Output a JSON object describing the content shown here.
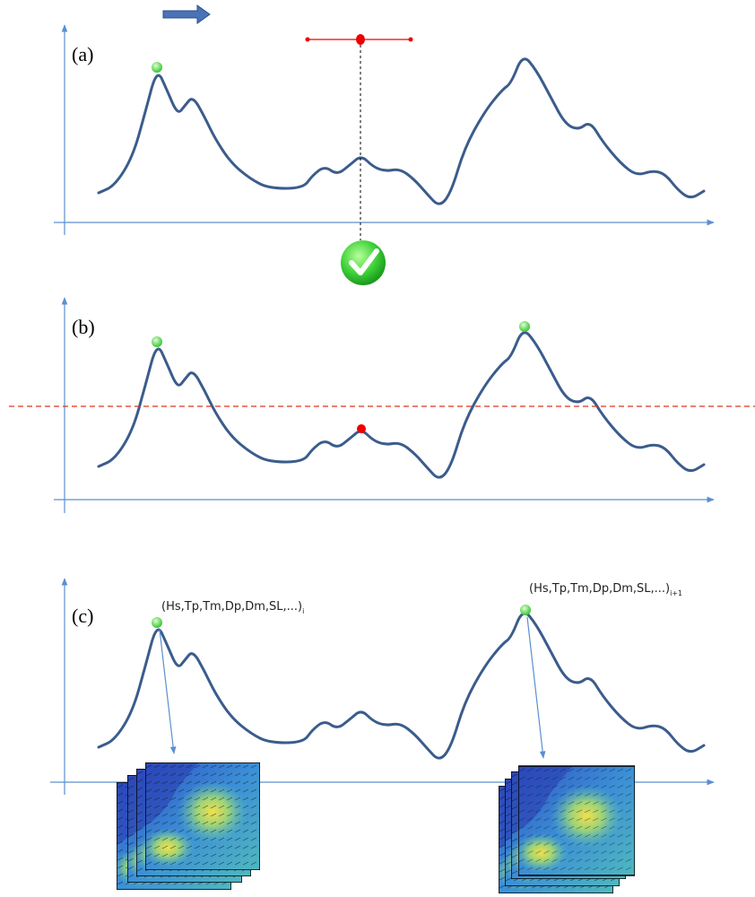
{
  "panels": [
    {
      "label": "(a)"
    },
    {
      "label": "(b)"
    },
    {
      "label": "(c)",
      "annotations": [
        {
          "text": "(Hs,Tp,Tm,Dp,Dm,SL,...)",
          "subscript": "i"
        },
        {
          "text": "(Hs,Tp,Tm,Dp,Dm,SL,...)",
          "subscript": "i+1"
        }
      ]
    }
  ]
}
